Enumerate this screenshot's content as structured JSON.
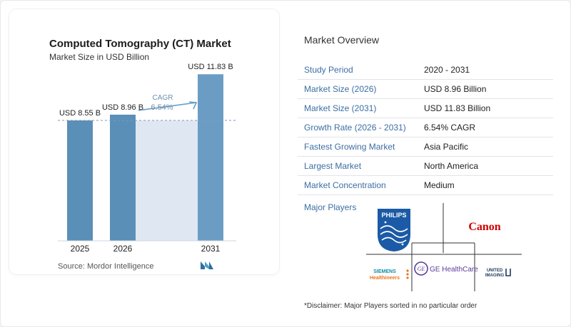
{
  "chart_data": {
    "type": "bar",
    "title": "Computed Tomography (CT) Market",
    "subtitle": "Market Size in USD Billion",
    "categories": [
      "2025",
      "2026",
      "2031"
    ],
    "values": [
      8.55,
      8.96,
      11.83
    ],
    "value_labels": [
      "USD 8.55 B",
      "USD 8.96 B",
      "USD 11.83 B"
    ],
    "cagr_label": "CAGR",
    "cagr_value": "6.54%",
    "ylim": [
      0,
      12.5
    ],
    "bar_color": "#6b9dc4",
    "bar_color_dark": "#5a8fb8",
    "band_color": "#dfe8f2",
    "arrow_color": "#6b9dc4"
  },
  "source": "Source:",
  "source_name": "Mordor Intelligence",
  "overview": {
    "title": "Market Overview",
    "rows": [
      {
        "key": "Study Period",
        "value": "2020 - 2031"
      },
      {
        "key": "Market Size (2026)",
        "value": "USD 8.96 Billion"
      },
      {
        "key": "Market Size (2031)",
        "value": "USD 11.83 Billion"
      },
      {
        "key": "Growth Rate (2026 - 2031)",
        "value": "6.54% CAGR"
      },
      {
        "key": "Fastest Growing Market",
        "value": "Asia Pacific"
      },
      {
        "key": "Largest Market",
        "value": "North America"
      },
      {
        "key": "Market Concentration",
        "value": "Medium"
      }
    ]
  },
  "players": {
    "label": "Major Players",
    "philips": "PHILIPS",
    "canon": "Canon",
    "siemens_1": "SIEMENS",
    "siemens_2": "Healthineers",
    "ge_mark": "GE",
    "ge_name": "GE HealthCare",
    "united_1": "UNITED",
    "united_2": "IMAGING"
  },
  "disclaimer": "*Disclaimer: Major Players sorted in no particular order"
}
